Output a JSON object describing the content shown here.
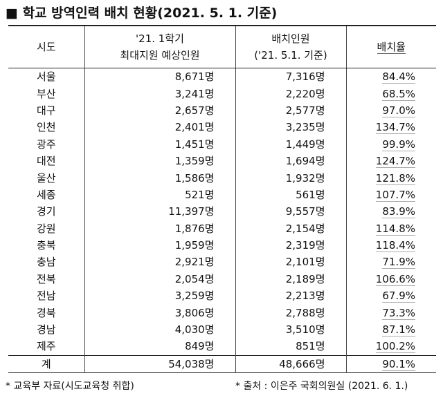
{
  "header": {
    "title": "■ 학교 방역인력 배치 현황(2021. 5. 1. 기준)"
  },
  "table": {
    "columns": [
      [
        "시도"
      ],
      [
        "'21. 1학기",
        "최대지원 예상인원"
      ],
      [
        "배치인원",
        "('21. 5.1. 기준)"
      ],
      [
        "배치율"
      ]
    ],
    "rows": [
      [
        "서울",
        "8,671명",
        "7,316명",
        "84.4%"
      ],
      [
        "부산",
        "3,241명",
        "2,220명",
        "68.5%"
      ],
      [
        "대구",
        "2,657명",
        "2,577명",
        "97.0%"
      ],
      [
        "인천",
        "2,401명",
        "3,235명",
        "134.7%"
      ],
      [
        "광주",
        "1,451명",
        "1,449명",
        "99.9%"
      ],
      [
        "대전",
        "1,359명",
        "1,694명",
        "124.7%"
      ],
      [
        "울산",
        "1,586명",
        "1,932명",
        "121.8%"
      ],
      [
        "세종",
        "521명",
        "561명",
        "107.7%"
      ],
      [
        "경기",
        "11,397명",
        "9,557명",
        "83.9%"
      ],
      [
        "강원",
        "1,876명",
        "2,154명",
        "114.8%"
      ],
      [
        "충북",
        "1,959명",
        "2,319명",
        "118.4%"
      ],
      [
        "충남",
        "2,921명",
        "2,101명",
        "71.9%"
      ],
      [
        "전북",
        "2,054명",
        "2,189명",
        "106.6%"
      ],
      [
        "전남",
        "3,259명",
        "2,213명",
        "67.9%"
      ],
      [
        "경북",
        "3,806명",
        "2,788명",
        "73.3%"
      ],
      [
        "경남",
        "4,030명",
        "3,510명",
        "87.1%"
      ],
      [
        "제주",
        "849명",
        "851명",
        "100.2%"
      ]
    ],
    "total": [
      "계",
      "54,038명",
      "48,666명",
      "90.1%"
    ]
  },
  "footer": {
    "left": "* 교육부 자료(시도교육청 취합)",
    "right": "* 출처 : 이은주 국회의원실 (2021. 6. 1.)"
  }
}
